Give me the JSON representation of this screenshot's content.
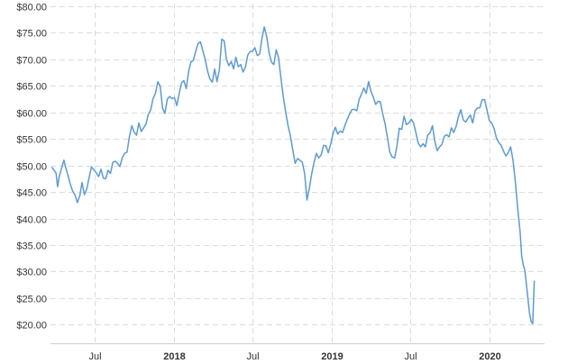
{
  "chart_data": {
    "type": "line",
    "title": "",
    "xlabel": "",
    "ylabel": "",
    "grid": true,
    "legend": "none",
    "colors": {
      "line": "#5b9bd5",
      "grid": "#dcdcdc",
      "text": "#333333"
    },
    "xlim": [
      2017.22,
      2020.35
    ],
    "ylim": [
      16.5,
      80.5
    ],
    "y_ticks": [
      {
        "value": 20,
        "label": "$20.00"
      },
      {
        "value": 25,
        "label": "$25.00"
      },
      {
        "value": 30,
        "label": "$30.00"
      },
      {
        "value": 35,
        "label": "$35.00"
      },
      {
        "value": 40,
        "label": "$40.00"
      },
      {
        "value": 45,
        "label": "$45.00"
      },
      {
        "value": 50,
        "label": "$50.00"
      },
      {
        "value": 55,
        "label": "$55.00"
      },
      {
        "value": 60,
        "label": "$60.00"
      },
      {
        "value": 65,
        "label": "$65.00"
      },
      {
        "value": 70,
        "label": "$70.00"
      },
      {
        "value": 75,
        "label": "$75.00"
      },
      {
        "value": 80,
        "label": "$80.00"
      }
    ],
    "x_ticks": [
      {
        "value": 2017.5,
        "label": "Jul",
        "bold": false
      },
      {
        "value": 2018.0,
        "label": "2018",
        "bold": true
      },
      {
        "value": 2018.5,
        "label": "Jul",
        "bold": false
      },
      {
        "value": 2019.0,
        "label": "2019",
        "bold": true
      },
      {
        "value": 2019.5,
        "label": "Jul",
        "bold": false
      },
      {
        "value": 2020.0,
        "label": "2020",
        "bold": true
      }
    ],
    "series": [
      {
        "x": [
          2017.23,
          2017.245,
          2017.255,
          2017.265,
          2017.275,
          2017.29,
          2017.305,
          2017.315,
          2017.33,
          2017.345,
          2017.36,
          2017.375,
          2017.39,
          2017.405,
          2017.42,
          2017.435,
          2017.45,
          2017.465,
          2017.48,
          2017.495,
          2017.51,
          2017.525,
          2017.54,
          2017.555,
          2017.57,
          2017.585,
          2017.6,
          2017.615,
          2017.63,
          2017.645,
          2017.66,
          2017.675,
          2017.69,
          2017.705,
          2017.72,
          2017.735,
          2017.75,
          2017.765,
          2017.78,
          2017.795,
          2017.81,
          2017.825,
          2017.84,
          2017.855,
          2017.87,
          2017.885,
          2017.9,
          2017.915,
          2017.93,
          2017.945,
          2017.96,
          2017.975,
          2017.99,
          2018.005,
          2018.02,
          2018.035,
          2018.05,
          2018.065,
          2018.08,
          2018.095,
          2018.11,
          2018.125,
          2018.14,
          2018.155,
          2018.17,
          2018.185,
          2018.2,
          2018.215,
          2018.23,
          2018.245,
          2018.26,
          2018.275,
          2018.29,
          2018.305,
          2018.32,
          2018.335,
          2018.35,
          2018.365,
          2018.38,
          2018.395,
          2018.41,
          2018.425,
          2018.44,
          2018.455,
          2018.47,
          2018.485,
          2018.5,
          2018.515,
          2018.53,
          2018.545,
          2018.56,
          2018.575,
          2018.59,
          2018.605,
          2018.62,
          2018.635,
          2018.65,
          2018.665,
          2018.68,
          2018.695,
          2018.71,
          2018.725,
          2018.74,
          2018.755,
          2018.77,
          2018.785,
          2018.8,
          2018.815,
          2018.83,
          2018.845,
          2018.86,
          2018.875,
          2018.89,
          2018.905,
          2018.92,
          2018.935,
          2018.95,
          2018.965,
          2018.98,
          2018.995,
          2019.01,
          2019.025,
          2019.04,
          2019.055,
          2019.07,
          2019.085,
          2019.1,
          2019.115,
          2019.13,
          2019.145,
          2019.16,
          2019.175,
          2019.19,
          2019.205,
          2019.22,
          2019.235,
          2019.25,
          2019.265,
          2019.28,
          2019.295,
          2019.31,
          2019.325,
          2019.34,
          2019.355,
          2019.37,
          2019.385,
          2019.4,
          2019.415,
          2019.43,
          2019.445,
          2019.46,
          2019.475,
          2019.49,
          2019.505,
          2019.52,
          2019.535,
          2019.55,
          2019.565,
          2019.58,
          2019.595,
          2019.61,
          2019.625,
          2019.64,
          2019.655,
          2019.67,
          2019.685,
          2019.7,
          2019.715,
          2019.73,
          2019.745,
          2019.76,
          2019.775,
          2019.79,
          2019.805,
          2019.82,
          2019.835,
          2019.85,
          2019.865,
          2019.88,
          2019.895,
          2019.91,
          2019.925,
          2019.94,
          2019.955,
          2019.97,
          2019.985,
          2020.0,
          2020.015,
          2020.03,
          2020.045,
          2020.06,
          2020.075,
          2020.09,
          2020.105,
          2020.12,
          2020.135,
          2020.15,
          2020.165,
          2020.18,
          2020.195,
          2020.205,
          2020.215,
          2020.225,
          2020.235,
          2020.245,
          2020.255,
          2020.265,
          2020.275,
          2020.285
        ],
        "y": [
          49.6,
          49.0,
          48.6,
          46.0,
          47.8,
          49.5,
          51.0,
          49.8,
          48.2,
          46.5,
          45.2,
          44.5,
          43.0,
          44.2,
          46.8,
          44.5,
          45.6,
          47.8,
          49.7,
          49.2,
          48.6,
          47.9,
          49.3,
          47.6,
          47.5,
          49.1,
          48.5,
          50.6,
          50.8,
          50.4,
          49.8,
          51.5,
          52.3,
          52.5,
          55.4,
          57.5,
          56.3,
          55.7,
          58.0,
          56.4,
          57.1,
          57.8,
          59.6,
          60.5,
          62.6,
          63.6,
          65.8,
          64.9,
          60.8,
          59.8,
          62.5,
          63.0,
          62.6,
          62.8,
          61.3,
          63.5,
          65.5,
          66.0,
          64.5,
          67.7,
          69.5,
          69.8,
          71.5,
          73.0,
          73.3,
          71.6,
          70.0,
          67.8,
          66.3,
          65.7,
          68.2,
          65.8,
          68.0,
          73.8,
          73.5,
          70.0,
          68.8,
          69.6,
          68.2,
          70.4,
          68.6,
          69.0,
          67.6,
          68.5,
          70.8,
          71.5,
          71.5,
          72.2,
          70.7,
          71.0,
          74.0,
          76.1,
          74.2,
          71.2,
          69.5,
          69.0,
          71.8,
          70.3,
          66.5,
          63.0,
          60.0,
          57.5,
          55.6,
          53.0,
          50.4,
          51.3,
          51.0,
          50.6,
          48.5,
          43.5,
          45.7,
          48.5,
          50.6,
          52.3,
          51.4,
          52.0,
          53.8,
          53.7,
          52.4,
          54.0,
          56.0,
          57.2,
          55.9,
          56.5,
          56.2,
          57.5,
          58.7,
          59.7,
          60.5,
          60.6,
          60.3,
          62.4,
          63.4,
          64.6,
          63.6,
          65.8,
          64.0,
          62.9,
          61.5,
          62.1,
          62.0,
          59.7,
          57.8,
          55.2,
          52.5,
          51.6,
          51.4,
          53.7,
          57.0,
          56.8,
          59.3,
          57.7,
          58.0,
          58.7,
          58.0,
          56.2,
          54.2,
          53.5,
          54.1,
          53.5,
          55.7,
          56.2,
          57.5,
          54.6,
          52.8,
          53.5,
          54.0,
          55.5,
          55.8,
          55.4,
          57.1,
          56.2,
          57.4,
          59.3,
          60.5,
          58.6,
          58.2,
          58.9,
          59.5,
          58.0,
          60.3,
          60.8,
          60.9,
          62.4,
          62.4,
          60.5,
          58.5,
          58.0,
          57.0,
          55.2,
          54.3,
          53.8,
          52.7,
          51.8,
          52.4,
          53.5,
          51.0,
          47.0,
          42.0,
          37.5,
          33.0,
          31.2,
          30.3,
          27.6,
          24.9,
          22.1,
          20.6,
          20.2,
          28.2
        ]
      }
    ]
  }
}
